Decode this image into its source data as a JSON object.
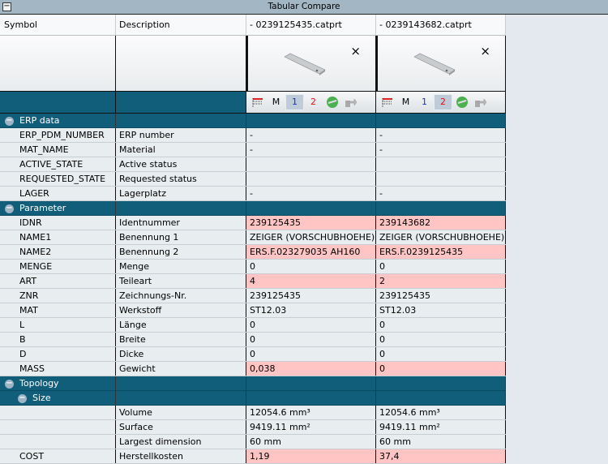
{
  "title": "Tabular Compare",
  "headers": {
    "symbol": "Symbol",
    "description": "Description",
    "file1": "- 0239125435.catprt",
    "file2": "- 0239143682.catprt"
  },
  "toolbar": {
    "m": "M",
    "one": "1",
    "two": "2",
    "close": "×"
  },
  "colors": {
    "section": "#115e7b",
    "diff": "#ffc4c4",
    "one": "#1a2fd0",
    "two": "#e01010"
  },
  "sections": {
    "erp": "ERP data",
    "parameter": "Parameter",
    "topology": "Topology",
    "size": "Size"
  },
  "rows": [
    {
      "sym": "ERP_PDM_NUMBER",
      "desc": "ERP number",
      "v1": "-",
      "v2": "-",
      "diff": false
    },
    {
      "sym": "MAT_NAME",
      "desc": "Material",
      "v1": "-",
      "v2": "-",
      "diff": false
    },
    {
      "sym": "ACTIVE_STATE",
      "desc": "Active status",
      "v1": "",
      "v2": "",
      "diff": false
    },
    {
      "sym": "REQUESTED_STATE",
      "desc": "Requested status",
      "v1": "",
      "v2": "",
      "diff": false
    },
    {
      "sym": "LAGER",
      "desc": "Lagerplatz",
      "v1": "-",
      "v2": "-",
      "diff": false
    },
    {
      "sym": "IDNR",
      "desc": "Identnummer",
      "v1": "239125435",
      "v2": "239143682",
      "diff": true
    },
    {
      "sym": "NAME1",
      "desc": "Benennung 1",
      "v1": "ZEIGER    (VORSCHUBHOEHE)",
      "v2": "ZEIGER    (VORSCHUBHOEHE)",
      "diff": false
    },
    {
      "sym": "NAME2",
      "desc": "Benennung 2",
      "v1": "ERS.F.023279035    AH160",
      "v2": "ERS.F.0239125435",
      "diff": true
    },
    {
      "sym": "MENGE",
      "desc": "Menge",
      "v1": "0",
      "v2": "0",
      "diff": false
    },
    {
      "sym": "ART",
      "desc": "Teileart",
      "v1": "4",
      "v2": "2",
      "diff": true
    },
    {
      "sym": "ZNR",
      "desc": "Zeichnungs-Nr.",
      "v1": "239125435",
      "v2": "239125435",
      "diff": false
    },
    {
      "sym": "MAT",
      "desc": "Werkstoff",
      "v1": "ST12.03",
      "v2": "ST12.03",
      "diff": false
    },
    {
      "sym": "L",
      "desc": "Länge",
      "v1": "0",
      "v2": "0",
      "diff": false
    },
    {
      "sym": "B",
      "desc": "Breite",
      "v1": "0",
      "v2": "0",
      "diff": false
    },
    {
      "sym": "D",
      "desc": "Dicke",
      "v1": "0",
      "v2": "0",
      "diff": false
    },
    {
      "sym": "MASS",
      "desc": "Gewicht",
      "v1": "0,038",
      "v2": "0",
      "diff": true
    },
    {
      "sym": "",
      "desc": "Volume",
      "v1": "12054.6 mm³",
      "v2": "12054.6 mm³",
      "diff": false
    },
    {
      "sym": "",
      "desc": "Surface",
      "v1": "9419.11 mm²",
      "v2": "9419.11 mm²",
      "diff": false
    },
    {
      "sym": "",
      "desc": "Largest dimension",
      "v1": "60 mm",
      "v2": "60 mm",
      "diff": false
    },
    {
      "sym": "COST",
      "desc": "Herstellkosten",
      "v1": "1,19",
      "v2": "37,4",
      "diff": true
    }
  ]
}
